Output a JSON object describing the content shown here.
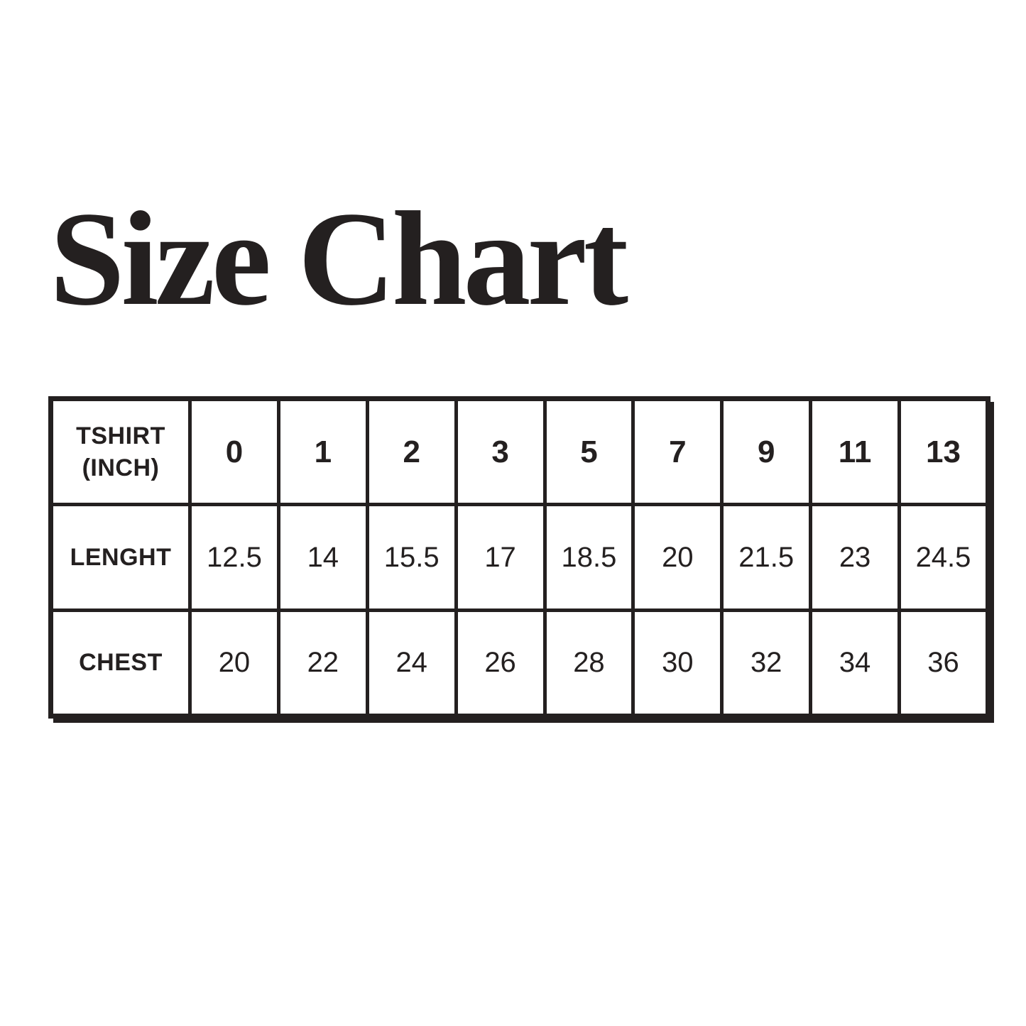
{
  "page": {
    "background": "#ffffff",
    "ink_color": "#242020"
  },
  "title": "Size Chart",
  "chart_data": {
    "type": "table",
    "title": "Size Chart",
    "header": {
      "label": "TSHIRT (INCH)",
      "values": [
        "0",
        "1",
        "2",
        "3",
        "5",
        "7",
        "9",
        "11",
        "13"
      ]
    },
    "rows": [
      {
        "label": "LENGHT",
        "values": [
          "12.5",
          "14",
          "15.5",
          "17",
          "18.5",
          "20",
          "21.5",
          "23",
          "24.5"
        ]
      },
      {
        "label": "CHEST",
        "values": [
          "20",
          "22",
          "24",
          "26",
          "28",
          "30",
          "32",
          "34",
          "36"
        ]
      }
    ],
    "layout_hints": {
      "grid": true,
      "label_column_position": "left",
      "border_style": "thick-black"
    }
  }
}
